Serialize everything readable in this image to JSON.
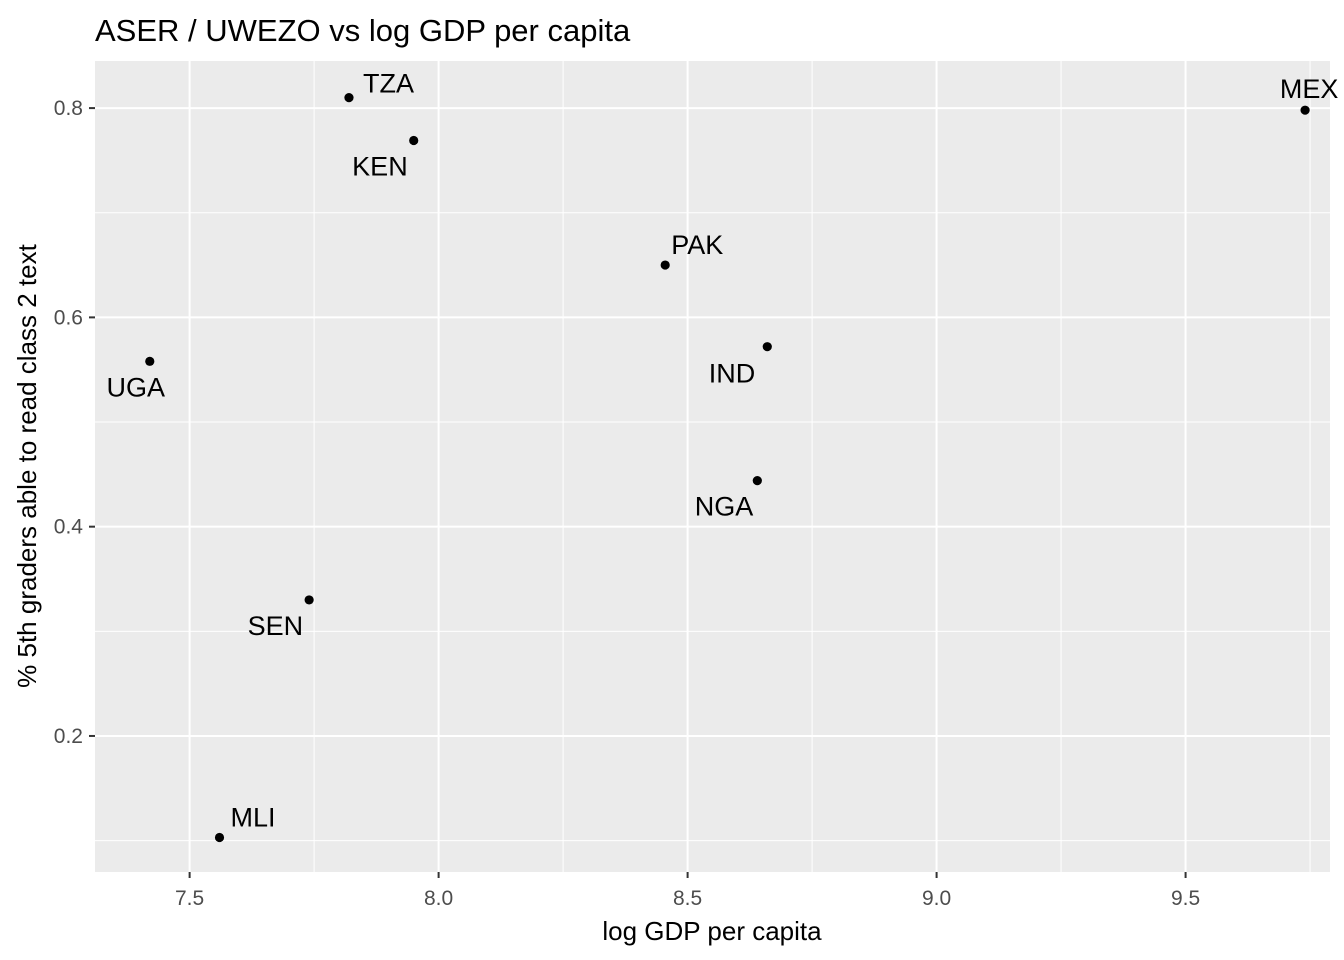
{
  "chart_data": {
    "type": "scatter",
    "title": "ASER / UWEZO vs log GDP per capita",
    "xlabel": "log GDP per capita",
    "ylabel": "% 5th graders able to read class 2 text",
    "xlim": [
      7.31,
      9.79
    ],
    "ylim": [
      0.07,
      0.845
    ],
    "x_ticks": [
      7.5,
      8.0,
      8.5,
      9.0,
      9.5
    ],
    "x_tick_labels": [
      "7.5",
      "8.0",
      "8.5",
      "9.0",
      "9.5"
    ],
    "y_ticks": [
      0.2,
      0.4,
      0.6,
      0.8
    ],
    "y_tick_labels": [
      "0.2",
      "0.4",
      "0.6",
      "0.8"
    ],
    "grid": true,
    "panel_background": "#ebebeb",
    "point_color": "#000000",
    "points": [
      {
        "label": "TZA",
        "x": 7.82,
        "y": 0.81
      },
      {
        "label": "KEN",
        "x": 7.95,
        "y": 0.769
      },
      {
        "label": "MEX",
        "x": 9.74,
        "y": 0.798
      },
      {
        "label": "PAK",
        "x": 8.455,
        "y": 0.65
      },
      {
        "label": "IND",
        "x": 8.66,
        "y": 0.572
      },
      {
        "label": "UGA",
        "x": 7.42,
        "y": 0.558
      },
      {
        "label": "NGA",
        "x": 8.64,
        "y": 0.444
      },
      {
        "label": "SEN",
        "x": 7.74,
        "y": 0.33
      },
      {
        "label": "MLI",
        "x": 7.56,
        "y": 0.103
      }
    ]
  }
}
